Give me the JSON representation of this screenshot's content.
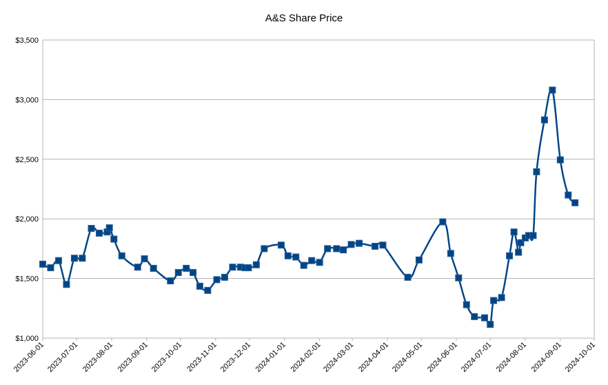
{
  "chart_data": {
    "type": "line",
    "title": "A&S Share Price",
    "xlabel": "",
    "ylabel": "",
    "ylim": [
      1000,
      3500
    ],
    "y_ticks": [
      1000,
      1500,
      2000,
      2500,
      3000,
      3500
    ],
    "y_tick_labels": [
      "$1,000",
      "$1,500",
      "$2,000",
      "$2,500",
      "$3,000",
      "$3,500"
    ],
    "x_range": [
      "2023-06-01",
      "2024-10-01"
    ],
    "x_ticks": [
      "2023-06-01",
      "2023-07-01",
      "2023-08-01",
      "2023-09-01",
      "2023-10-01",
      "2023-11-01",
      "2023-12-01",
      "2024-01-01",
      "2024-02-01",
      "2024-03-01",
      "2024-04-01",
      "2024-05-01",
      "2024-06-01",
      "2024-07-01",
      "2024-08-01",
      "2024-09-01",
      "2024-10-01"
    ],
    "grid": true,
    "legend": "none",
    "line_color": "#004586",
    "marker": "square",
    "series": [
      {
        "x": [
          "2023-06-01",
          "2023-06-08",
          "2023-06-15",
          "2023-06-22",
          "2023-06-29",
          "2023-07-06",
          "2023-07-14",
          "2023-07-21",
          "2023-07-28",
          "2023-07-30",
          "2023-08-03",
          "2023-08-10",
          "2023-08-24",
          "2023-08-30",
          "2023-09-07",
          "2023-09-22",
          "2023-09-29",
          "2023-10-06",
          "2023-10-12",
          "2023-10-18",
          "2023-10-25",
          "2023-11-02",
          "2023-11-09",
          "2023-11-16",
          "2023-11-23",
          "2023-11-27",
          "2023-11-30",
          "2023-12-07",
          "2023-12-14",
          "2023-12-29",
          "2024-01-04",
          "2024-01-11",
          "2024-01-18",
          "2024-01-25",
          "2024-02-01",
          "2024-02-08",
          "2024-02-16",
          "2024-02-22",
          "2024-02-29",
          "2024-03-07",
          "2024-03-21",
          "2024-03-28",
          "2024-04-19",
          "2024-04-29",
          "2024-05-20",
          "2024-05-27",
          "2024-06-03",
          "2024-06-10",
          "2024-06-17",
          "2024-06-26",
          "2024-07-01",
          "2024-07-04",
          "2024-07-11",
          "2024-07-18",
          "2024-07-22",
          "2024-07-26",
          "2024-07-28",
          "2024-08-01",
          "2024-08-04",
          "2024-08-08",
          "2024-08-11",
          "2024-08-18",
          "2024-08-25",
          "2024-09-01",
          "2024-09-08",
          "2024-09-14"
        ],
        "y": [
          1620,
          1590,
          1650,
          1450,
          1670,
          1670,
          1920,
          1880,
          1890,
          1925,
          1830,
          1690,
          1595,
          1665,
          1585,
          1480,
          1550,
          1585,
          1550,
          1435,
          1400,
          1490,
          1510,
          1595,
          1595,
          1590,
          1590,
          1615,
          1750,
          1780,
          1690,
          1680,
          1610,
          1650,
          1635,
          1750,
          1750,
          1740,
          1785,
          1795,
          1770,
          1780,
          1510,
          1655,
          1975,
          1710,
          1505,
          1280,
          1180,
          1170,
          1115,
          1315,
          1340,
          1690,
          1890,
          1720,
          1800,
          1840,
          1860,
          1860,
          2395,
          2830,
          3080,
          2495,
          2200,
          2135
        ]
      }
    ]
  }
}
